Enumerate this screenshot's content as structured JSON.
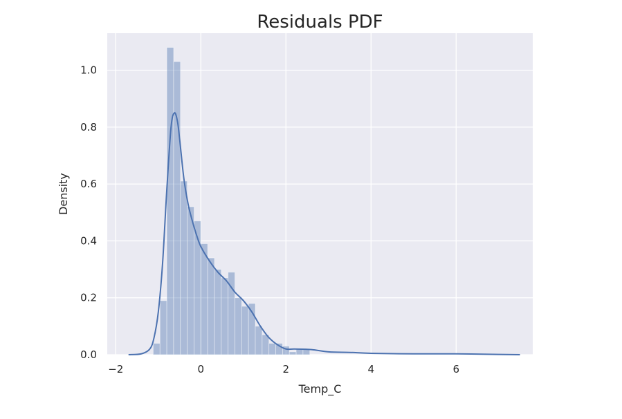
{
  "chart_data": {
    "type": "histogram",
    "title": "Residuals PDF",
    "xlabel": "Temp_C",
    "ylabel": "Density",
    "xlim": [
      -2.2,
      7.8
    ],
    "ylim": [
      0,
      1.13
    ],
    "xticks": [
      -2,
      0,
      2,
      4,
      6
    ],
    "xtick_labels": [
      "−2",
      "0",
      "2",
      "4",
      "6"
    ],
    "yticks": [
      0.0,
      0.2,
      0.4,
      0.6,
      0.8,
      1.0
    ],
    "ytick_labels": [
      "0.0",
      "0.2",
      "0.4",
      "0.6",
      "0.8",
      "1.0"
    ],
    "grid": true,
    "colors": {
      "background": "#eaeaf2",
      "grid": "#ffffff",
      "bars": "#4c72b0",
      "kde": "#4c72b0"
    },
    "histogram": {
      "bin_edges": [
        -1.12,
        -0.96,
        -0.8,
        -0.64,
        -0.48,
        -0.32,
        -0.16,
        0.0,
        0.16,
        0.32,
        0.48,
        0.64,
        0.8,
        0.96,
        1.12,
        1.28,
        1.44,
        1.6,
        1.76,
        1.92,
        2.08,
        2.24,
        2.4,
        2.56
      ],
      "densities": [
        0.04,
        0.19,
        1.08,
        1.03,
        0.61,
        0.52,
        0.47,
        0.39,
        0.34,
        0.3,
        0.27,
        0.29,
        0.2,
        0.17,
        0.18,
        0.1,
        0.07,
        0.04,
        0.04,
        0.03,
        0.01,
        0.02,
        0.02
      ]
    },
    "kde": {
      "x": [
        -1.7,
        -1.4,
        -1.2,
        -1.1,
        -1.0,
        -0.9,
        -0.8,
        -0.7,
        -0.62,
        -0.55,
        -0.5,
        -0.4,
        -0.3,
        -0.2,
        -0.1,
        0.0,
        0.2,
        0.4,
        0.6,
        0.8,
        1.0,
        1.2,
        1.4,
        1.6,
        1.8,
        2.0,
        2.2,
        2.6,
        3.0,
        3.5,
        4.0,
        5.0,
        6.0,
        7.0,
        7.5
      ],
      "y": [
        0.0,
        0.003,
        0.02,
        0.06,
        0.15,
        0.32,
        0.58,
        0.8,
        0.85,
        0.82,
        0.76,
        0.62,
        0.53,
        0.47,
        0.42,
        0.38,
        0.33,
        0.29,
        0.26,
        0.22,
        0.19,
        0.15,
        0.1,
        0.06,
        0.035,
        0.02,
        0.02,
        0.018,
        0.01,
        0.008,
        0.005,
        0.003,
        0.003,
        0.001,
        0.0
      ]
    }
  }
}
